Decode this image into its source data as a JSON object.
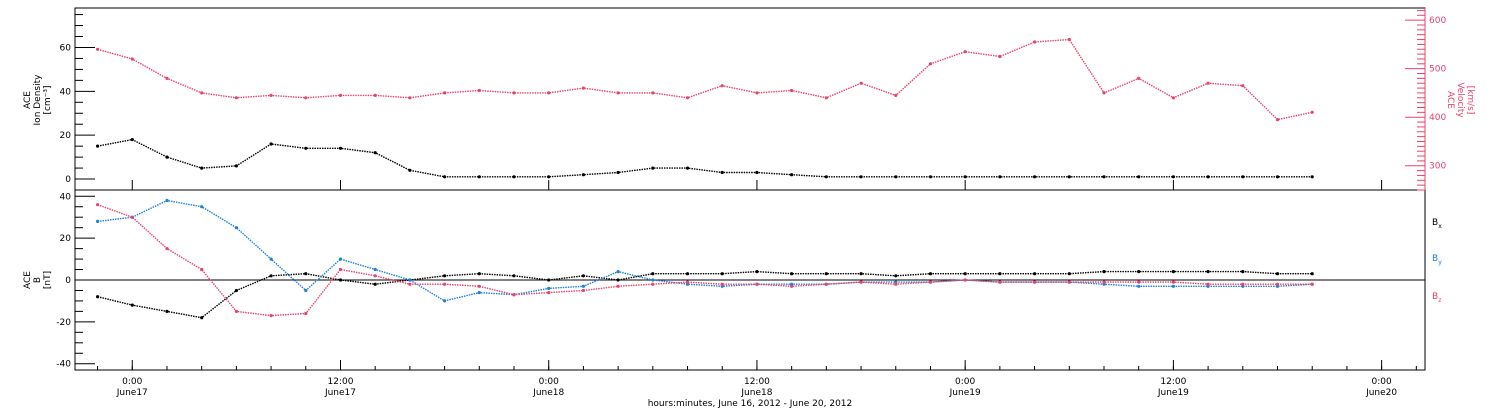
{
  "chart_data": [
    {
      "type": "scatter",
      "panel": "top",
      "x_unit": "hours since 2012-06-16 22:00",
      "left_axis": {
        "label_lines": [
          "ACE",
          "Ion Density",
          "[cm⁻³]"
        ],
        "ylim": [
          -5,
          78
        ],
        "ticks": [
          0,
          20,
          40,
          60
        ]
      },
      "right_axis": {
        "label_lines": [
          "ACE",
          "Velocity",
          "[km/s]"
        ],
        "ylim": [
          250,
          625
        ],
        "ticks": [
          300,
          400,
          500,
          600
        ]
      },
      "series": [
        {
          "name": "",
          "axis": "right",
          "color": "#e8436c",
          "x": [
            0,
            2,
            4,
            6,
            8,
            10,
            12,
            14,
            16,
            18,
            20,
            22,
            24,
            26,
            28,
            30,
            32,
            34,
            36,
            38,
            40,
            42,
            44,
            46,
            48,
            50,
            52,
            54,
            56,
            58,
            60,
            62,
            64,
            66,
            68,
            70
          ],
          "y": [
            540,
            520,
            480,
            450,
            440,
            445,
            440,
            445,
            445,
            440,
            450,
            455,
            450,
            450,
            460,
            450,
            450,
            440,
            465,
            450,
            455,
            440,
            470,
            445,
            510,
            535,
            525,
            555,
            560,
            450,
            480,
            440,
            470,
            465,
            395,
            410
          ]
        },
        {
          "name": "",
          "axis": "left",
          "color": "#000000",
          "x": [
            0,
            2,
            4,
            6,
            8,
            10,
            12,
            14,
            16,
            18,
            20,
            22,
            24,
            26,
            28,
            30,
            32,
            34,
            36,
            38,
            40,
            42,
            44,
            46,
            48,
            50,
            52,
            54,
            56,
            58,
            60,
            62,
            64,
            66,
            68,
            70
          ],
          "y": [
            15,
            18,
            10,
            5,
            6,
            16,
            14,
            14,
            12,
            4,
            1,
            1,
            1,
            1,
            2,
            3,
            5,
            5,
            3,
            3,
            2,
            1,
            1,
            1,
            1,
            1,
            1,
            1,
            1,
            1,
            1,
            1,
            1,
            1,
            1,
            1
          ]
        }
      ]
    },
    {
      "type": "scatter",
      "panel": "bottom",
      "x_unit": "hours since 2012-06-16 22:00",
      "left_axis": {
        "label_lines": [
          "ACE",
          "B",
          "[nT]"
        ],
        "ylim": [
          -43,
          43
        ],
        "ticks": [
          -40,
          -20,
          0,
          20,
          40
        ]
      },
      "xlabel": "hours:minutes, June 16, 2012 - June 20, 2012",
      "x_ticks": [
        {
          "x": 2,
          "time": "0:00",
          "day": "June17"
        },
        {
          "x": 14,
          "time": "12:00",
          "day": "June17"
        },
        {
          "x": 26,
          "time": "0:00",
          "day": "June18"
        },
        {
          "x": 38,
          "time": "12:00",
          "day": "June18"
        },
        {
          "x": 50,
          "time": "0:00",
          "day": "June19"
        },
        {
          "x": 62,
          "time": "12:00",
          "day": "June19"
        },
        {
          "x": 74,
          "time": "0:00",
          "day": "June20"
        }
      ],
      "series": [
        {
          "name": "B",
          "subscript": "x",
          "color": "#000000",
          "x": [
            0,
            2,
            4,
            6,
            8,
            10,
            12,
            14,
            16,
            18,
            20,
            22,
            24,
            26,
            28,
            30,
            32,
            34,
            36,
            38,
            40,
            42,
            44,
            46,
            48,
            50,
            52,
            54,
            56,
            58,
            60,
            62,
            64,
            66,
            68,
            70
          ],
          "y": [
            -8,
            -12,
            -15,
            -18,
            -5,
            2,
            3,
            0,
            -2,
            0,
            2,
            3,
            2,
            0,
            2,
            0,
            3,
            3,
            3,
            4,
            3,
            3,
            3,
            2,
            3,
            3,
            3,
            3,
            3,
            4,
            4,
            4,
            4,
            4,
            3,
            3
          ]
        },
        {
          "name": "B",
          "subscript": "y",
          "color": "#1f7fd8",
          "x": [
            0,
            2,
            4,
            6,
            8,
            10,
            12,
            14,
            16,
            18,
            20,
            22,
            24,
            26,
            28,
            30,
            32,
            34,
            36,
            38,
            40,
            42,
            44,
            46,
            48,
            50,
            52,
            54,
            56,
            58,
            60,
            62,
            64,
            66,
            68,
            70
          ],
          "y": [
            28,
            30,
            38,
            35,
            25,
            10,
            -5,
            10,
            5,
            0,
            -10,
            -6,
            -7,
            -4,
            -3,
            4,
            0,
            -2,
            -3,
            -2,
            -2,
            -2,
            -1,
            -1,
            -1,
            0,
            -1,
            -1,
            -1,
            -2,
            -3,
            -3,
            -3,
            -3,
            -3,
            -2
          ]
        },
        {
          "name": "B",
          "subscript": "z",
          "color": "#e8436c",
          "x": [
            0,
            2,
            4,
            6,
            8,
            10,
            12,
            14,
            16,
            18,
            20,
            22,
            24,
            26,
            28,
            30,
            32,
            34,
            36,
            38,
            40,
            42,
            44,
            46,
            48,
            50,
            52,
            54,
            56,
            58,
            60,
            62,
            64,
            66,
            68,
            70
          ],
          "y": [
            36,
            30,
            15,
            5,
            -15,
            -17,
            -16,
            5,
            2,
            -2,
            -2,
            -3,
            -7,
            -6,
            -5,
            -3,
            -2,
            -1,
            -2,
            -2,
            -3,
            -2,
            -1,
            -2,
            -1,
            0,
            -1,
            -1,
            -1,
            -1,
            -1,
            -1,
            -2,
            -2,
            -2,
            -2
          ]
        }
      ]
    }
  ]
}
